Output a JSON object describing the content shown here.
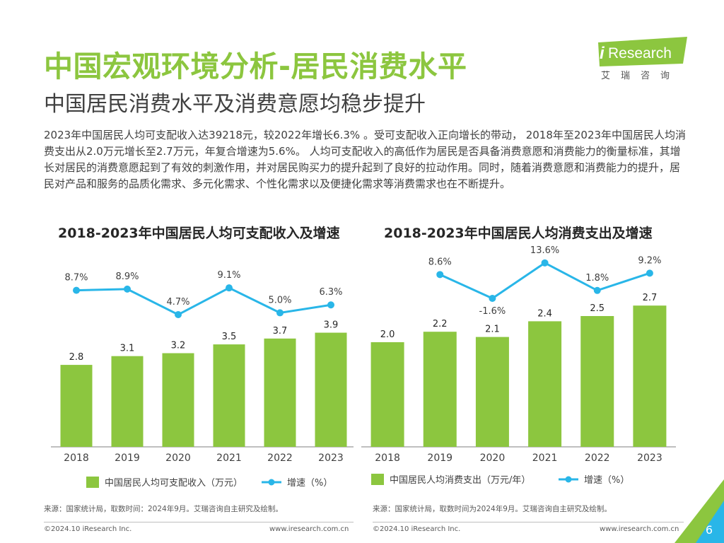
{
  "header": {
    "title": "中国宏观环境分析-居民消费水平",
    "subtitle": "中国居民消费水平及消费意愿均稳步提升"
  },
  "logo": {
    "brand_i": "i",
    "brand_rest": "Research",
    "sub": "艾瑞咨询"
  },
  "body": {
    "paragraph": "2023年中国居民人均可支配收入达39218元，较2022年增长6.3% 。受可支配收入正向增长的带动， 2018年至2023年中国居民人均消费支出从2.0万元增长至2.7万元，年复合增速为5.6%。 人均可支配收入的高低作为居民是否具备消费意愿和消费能力的衡量标准，其增长对居民的消费意愿起到了有效的刺激作用，并对居民购买力的提升起到了良好的拉动作用。同时，随着消费意愿和消费能力的提升，居民对产品和服务的品质化需求、多元化需求、个性化需求以及便捷化需求等消费需求也在不断提升。"
  },
  "colors": {
    "bar": "#8cc63f",
    "line": "#29b6e8",
    "title": "#8cc63f"
  },
  "chart_data": [
    {
      "type": "bar",
      "title": "2018-2023年中国居民人均可支配收入及增速",
      "categories": [
        "2018",
        "2019",
        "2020",
        "2021",
        "2022",
        "2023"
      ],
      "series": [
        {
          "name": "中国居民人均可支配收入（万元）",
          "type": "bar",
          "values": [
            2.8,
            3.1,
            3.2,
            3.5,
            3.7,
            3.9
          ],
          "labels": [
            "2.8",
            "3.1",
            "3.2",
            "3.5",
            "3.7",
            "3.9"
          ]
        },
        {
          "name": "增速（%）",
          "type": "line",
          "values": [
            8.7,
            8.9,
            4.7,
            9.1,
            5.0,
            6.3
          ],
          "labels": [
            "8.7%",
            "8.9%",
            "4.7%",
            "9.1%",
            "5.0%",
            "6.3%"
          ]
        }
      ],
      "legend_position": "bottom",
      "source": "来源：国家统计局，取数时间：2024年9月。艾瑞咨询自主研究及绘制。"
    },
    {
      "type": "bar",
      "title": "2018-2023年中国居民人均消费支出及增速",
      "categories": [
        "2018",
        "2019",
        "2020",
        "2021",
        "2022",
        "2023"
      ],
      "series": [
        {
          "name": "中国居民人均消费支出（万元/年）",
          "type": "bar",
          "values": [
            2.0,
            2.2,
            2.1,
            2.4,
            2.5,
            2.7
          ],
          "labels": [
            "2.0",
            "2.2",
            "2.1",
            "2.4",
            "2.5",
            "2.7"
          ]
        },
        {
          "name": "增速（%）",
          "type": "line",
          "values": [
            null,
            8.6,
            -1.6,
            13.6,
            1.8,
            9.2
          ],
          "labels": [
            "",
            "8.6%",
            "-1.6%",
            "13.6%",
            "1.8%",
            "9.2%"
          ]
        }
      ],
      "legend_position": "bottom",
      "source": "来源：国家统计局，取数时间为2024年9月。艾瑞咨询自主研究及绘制。"
    }
  ],
  "footer": {
    "copyright_left": "©2024.10 iResearch Inc.",
    "url_left": "www.iresearch.com.cn",
    "copyright_right": "©2024.10 iResearch Inc.",
    "url_right": "www.iresearch.com.cn",
    "page_number": "6"
  }
}
